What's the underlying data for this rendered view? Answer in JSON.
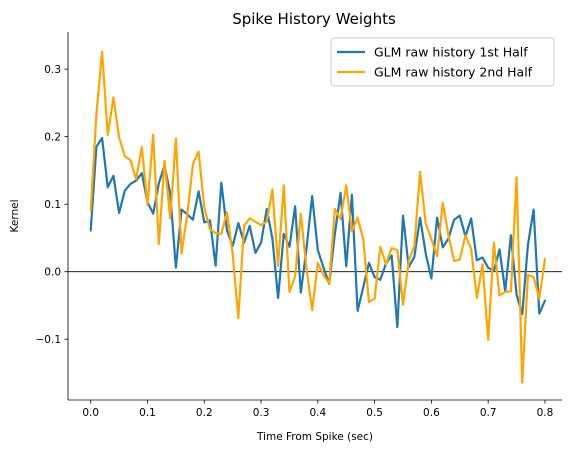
{
  "chart_data": {
    "type": "line",
    "title": "Spike History Weights",
    "xlabel": "Time From Spike (sec)",
    "ylabel": "Kernel",
    "xlim": [
      -0.04,
      0.83
    ],
    "ylim": [
      -0.19,
      0.355
    ],
    "xticks": [
      0.0,
      0.1,
      0.2,
      0.3,
      0.4,
      0.5,
      0.6,
      0.7,
      0.8
    ],
    "xtick_labels": [
      "0.0",
      "0.1",
      "0.2",
      "0.3",
      "0.4",
      "0.5",
      "0.6",
      "0.7",
      "0.8"
    ],
    "yticks": [
      -0.1,
      0.0,
      0.1,
      0.2,
      0.3
    ],
    "ytick_labels": [
      "−0.1",
      "0.0",
      "0.1",
      "0.2",
      "0.3"
    ],
    "hline": 0.0,
    "legend_position": "top-right",
    "x_start": 0.0,
    "x_step": 0.01,
    "series": [
      {
        "name": "GLM raw history 1st Half",
        "color": "#1f77b4",
        "values": [
          0.061,
          0.185,
          0.198,
          0.125,
          0.142,
          0.087,
          0.12,
          0.13,
          0.135,
          0.146,
          0.103,
          0.086,
          0.131,
          0.157,
          0.116,
          0.006,
          0.092,
          0.085,
          0.077,
          0.119,
          0.073,
          0.076,
          0.009,
          0.132,
          0.061,
          0.038,
          0.072,
          0.043,
          0.068,
          0.028,
          0.043,
          0.093,
          0.049,
          -0.039,
          0.056,
          0.037,
          0.097,
          -0.031,
          0.034,
          0.112,
          0.032,
          0.006,
          -0.018,
          0.056,
          0.117,
          0.008,
          0.114,
          -0.058,
          -0.023,
          0.013,
          -0.008,
          -0.012,
          0.012,
          0.024,
          -0.082,
          0.083,
          0.007,
          0.022,
          0.08,
          0.027,
          -0.01,
          0.08,
          0.036,
          0.049,
          0.077,
          0.083,
          0.052,
          0.079,
          0.017,
          0.021,
          0.006,
          0.001,
          0.033,
          -0.029,
          0.054,
          -0.034,
          -0.063,
          0.04,
          0.092,
          -0.062,
          -0.043
        ]
      },
      {
        "name": "GLM raw history 2nd Half",
        "color": "#ffa500",
        "values": [
          0.091,
          0.233,
          0.326,
          0.202,
          0.258,
          0.199,
          0.171,
          0.165,
          0.137,
          0.185,
          0.099,
          0.203,
          0.041,
          0.164,
          0.079,
          0.197,
          0.027,
          0.084,
          0.159,
          0.178,
          0.095,
          0.063,
          0.057,
          0.056,
          0.088,
          0.026,
          -0.069,
          0.068,
          0.079,
          0.074,
          0.069,
          0.074,
          0.122,
          0.009,
          0.128,
          -0.03,
          -0.007,
          0.086,
          0.005,
          -0.057,
          0.013,
          -0.005,
          -0.017,
          0.093,
          0.078,
          0.128,
          0.06,
          0.08,
          0.048,
          -0.045,
          -0.04,
          0.037,
          0.011,
          0.035,
          0.032,
          -0.049,
          0.016,
          0.038,
          0.148,
          0.071,
          0.048,
          0.023,
          0.102,
          0.054,
          0.016,
          0.018,
          0.054,
          0.034,
          -0.039,
          0.011,
          -0.101,
          0.043,
          -0.035,
          -0.03,
          -0.029,
          0.14,
          -0.164,
          -0.005,
          -0.008,
          -0.04,
          0.019
        ]
      }
    ]
  }
}
